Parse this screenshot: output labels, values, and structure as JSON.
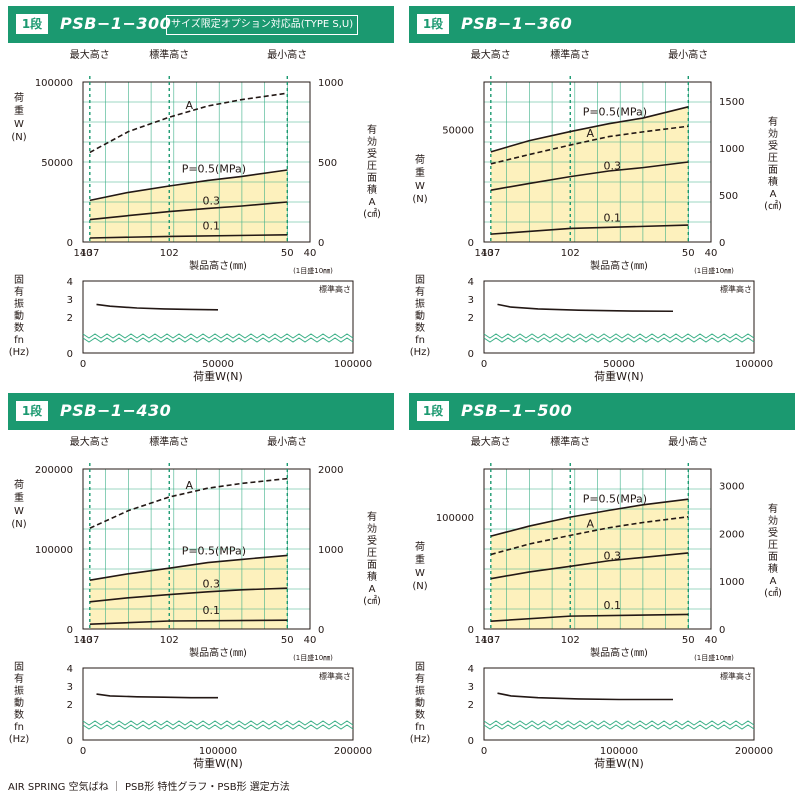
{
  "colors": {
    "header": "#1b9970",
    "grid": "#3db088",
    "fill": "#fdf1bd",
    "dashed_green": "#1b9970"
  },
  "labels": {
    "max_height": "最大高さ",
    "std_height": "標準高さ",
    "min_height": "最小高さ",
    "load_axis": [
      "荷",
      "重",
      "W",
      "(N)"
    ],
    "area_axis": [
      "有",
      "効",
      "受",
      "圧",
      "面",
      "積",
      "A",
      "(㎠)"
    ],
    "height_axis": "製品高さ(㎜)",
    "height_note": "(1目盛10㎜)",
    "freq_axis": [
      "固",
      "有",
      "振",
      "動",
      "数",
      "fn",
      "(Hz)"
    ],
    "freq_std": "標準高さ",
    "load_x_axis": "荷重W(N)",
    "curve_area": "A",
    "curve_p05": "P=0.5(MPa)",
    "curve_p03": "0.3",
    "curve_p01": "0.1"
  },
  "footer": "AIR SPRING 空気ばね ｜ PSB形 特性グラフ・PSB形 選定方法",
  "charts": [
    {
      "step": "1段",
      "model": "PSB−1−300",
      "tag": "サイズ限定オプション対応品(TYPE S,U)",
      "chart_data": {
        "type": "line",
        "title": "PSB−1−300",
        "x_ticks": [
          "140",
          "137",
          "102",
          "50",
          "40"
        ],
        "x_ticks_val": [
          140,
          137,
          102,
          50,
          40
        ],
        "xlim": [
          140,
          40
        ],
        "load_ticks": [
          "100000",
          "50000",
          "0"
        ],
        "load_ticks_val": [
          100000,
          50000,
          0
        ],
        "load_max": 100000,
        "area_ticks": [
          "1000",
          "500",
          "0"
        ],
        "area_ticks_val": [
          1000,
          500,
          0
        ],
        "area_max": 1000,
        "series": [
          {
            "name": "A",
            "kind": "area",
            "x": [
              137,
              120,
              102,
              85,
              70,
              50
            ],
            "values": [
              560,
              690,
              780,
              850,
              890,
              930
            ]
          },
          {
            "name": "P=0.5(MPa)",
            "kind": "load",
            "x": [
              137,
              120,
              102,
              85,
              70,
              50
            ],
            "values": [
              26000,
              31000,
              35000,
              38500,
              41000,
              45000
            ]
          },
          {
            "name": "0.3",
            "kind": "load",
            "x": [
              137,
              120,
              102,
              85,
              70,
              50
            ],
            "values": [
              14000,
              16500,
              19000,
              21000,
              22500,
              25000
            ]
          },
          {
            "name": "0.1",
            "kind": "load",
            "x": [
              137,
              102,
              50
            ],
            "values": [
              2500,
              3500,
              4500
            ]
          }
        ],
        "freq": {
          "ticks": [
            "4",
            "3",
            "2",
            "0"
          ],
          "x_ticks": [
            "0",
            "50000",
            "100000"
          ],
          "x_ticks_val": [
            0,
            50000,
            100000
          ],
          "xmax": 100000,
          "x": [
            5000,
            10000,
            20000,
            30000,
            40000,
            50000
          ],
          "values": [
            2.7,
            2.6,
            2.5,
            2.45,
            2.42,
            2.4
          ]
        }
      }
    },
    {
      "step": "1段",
      "model": "PSB−1−360",
      "tag": "",
      "chart_data": {
        "type": "line",
        "title": "PSB−1−360",
        "x_ticks": [
          "140",
          "137",
          "102",
          "50",
          "40"
        ],
        "x_ticks_val": [
          140,
          137,
          102,
          50,
          40
        ],
        "xlim": [
          140,
          40
        ],
        "load_ticks": [
          "50000",
          "0"
        ],
        "load_ticks_val": [
          50000,
          0
        ],
        "load_max": 71000,
        "area_ticks": [
          "1500",
          "1000",
          "500",
          "0"
        ],
        "area_ticks_val": [
          1500,
          1000,
          500,
          0
        ],
        "area_max": 1700,
        "series": [
          {
            "name": "P=0.5(MPa)",
            "kind": "load",
            "x": [
              137,
              120,
              102,
              85,
              70,
              50
            ],
            "values": [
              40000,
              45000,
              49000,
              52500,
              55000,
              60000
            ]
          },
          {
            "name": "A",
            "kind": "area",
            "x": [
              137,
              120,
              102,
              85,
              70,
              50
            ],
            "values": [
              830,
              930,
              1030,
              1120,
              1170,
              1230
            ]
          },
          {
            "name": "0.3",
            "kind": "load",
            "x": [
              137,
              120,
              102,
              85,
              70,
              50
            ],
            "values": [
              23000,
              26000,
              29000,
              31500,
              33000,
              35500
            ]
          },
          {
            "name": "0.1",
            "kind": "load",
            "x": [
              137,
              102,
              50
            ],
            "values": [
              3500,
              6000,
              7500
            ]
          }
        ],
        "freq": {
          "ticks": [
            "4",
            "3",
            "2",
            "0"
          ],
          "x_ticks": [
            "0",
            "50000",
            "100000"
          ],
          "x_ticks_val": [
            0,
            50000,
            100000
          ],
          "xmax": 100000,
          "x": [
            5000,
            10000,
            20000,
            35000,
            55000,
            70000
          ],
          "values": [
            2.7,
            2.55,
            2.45,
            2.38,
            2.33,
            2.32
          ]
        }
      }
    },
    {
      "step": "1段",
      "model": "PSB−1−430",
      "tag": "",
      "chart_data": {
        "type": "line",
        "title": "PSB−1−430",
        "x_ticks": [
          "140",
          "137",
          "102",
          "50",
          "40"
        ],
        "x_ticks_val": [
          140,
          137,
          102,
          50,
          40
        ],
        "xlim": [
          140,
          40
        ],
        "load_ticks": [
          "200000",
          "100000",
          "0"
        ],
        "load_ticks_val": [
          200000,
          100000,
          0
        ],
        "load_max": 200000,
        "area_ticks": [
          "2000",
          "1000",
          "0"
        ],
        "area_ticks_val": [
          2000,
          1000,
          0
        ],
        "area_max": 2000,
        "series": [
          {
            "name": "A",
            "kind": "area",
            "x": [
              137,
              120,
              102,
              85,
              70,
              50
            ],
            "values": [
              1260,
              1480,
              1650,
              1760,
              1820,
              1880
            ]
          },
          {
            "name": "P=0.5(MPa)",
            "kind": "load",
            "x": [
              137,
              120,
              102,
              85,
              70,
              50
            ],
            "values": [
              61000,
              69000,
              76000,
              83000,
              87000,
              92000
            ]
          },
          {
            "name": "0.3",
            "kind": "load",
            "x": [
              137,
              120,
              102,
              85,
              70,
              50
            ],
            "values": [
              34000,
              39000,
              43000,
              46500,
              49000,
              51000
            ]
          },
          {
            "name": "0.1",
            "kind": "load",
            "x": [
              137,
              102,
              50
            ],
            "values": [
              6000,
              10000,
              11000
            ]
          }
        ],
        "freq": {
          "ticks": [
            "4",
            "3",
            "2",
            "0"
          ],
          "x_ticks": [
            "0",
            "100000",
            "200000"
          ],
          "x_ticks_val": [
            0,
            100000,
            200000
          ],
          "xmax": 200000,
          "x": [
            10000,
            20000,
            40000,
            60000,
            80000,
            100000
          ],
          "values": [
            2.55,
            2.45,
            2.4,
            2.38,
            2.35,
            2.35
          ]
        }
      }
    },
    {
      "step": "1段",
      "model": "PSB−1−500",
      "tag": "",
      "chart_data": {
        "type": "line",
        "title": "PSB−1−500",
        "x_ticks": [
          "140",
          "137",
          "102",
          "50",
          "40"
        ],
        "x_ticks_val": [
          140,
          137,
          102,
          50,
          40
        ],
        "xlim": [
          140,
          40
        ],
        "load_ticks": [
          "100000",
          "0"
        ],
        "load_ticks_val": [
          100000,
          0
        ],
        "load_max": 143000,
        "area_ticks": [
          "3000",
          "2000",
          "1000",
          "0"
        ],
        "area_ticks_val": [
          3000,
          2000,
          1000,
          0
        ],
        "area_max": 3350,
        "series": [
          {
            "name": "P=0.5(MPa)",
            "kind": "load",
            "x": [
              137,
              120,
              102,
              85,
              70,
              50
            ],
            "values": [
              83000,
              92000,
              100000,
              106000,
              111000,
              116000
            ]
          },
          {
            "name": "A",
            "kind": "area",
            "x": [
              137,
              120,
              102,
              85,
              70,
              50
            ],
            "values": [
              1560,
              1780,
              1960,
              2120,
              2230,
              2350
            ]
          },
          {
            "name": "0.3",
            "kind": "load",
            "x": [
              137,
              120,
              102,
              85,
              70,
              50
            ],
            "values": [
              45000,
              51000,
              56000,
              61000,
              64000,
              68000
            ]
          },
          {
            "name": "0.1",
            "kind": "load",
            "x": [
              137,
              102,
              50
            ],
            "values": [
              7000,
              11500,
              13000
            ]
          }
        ],
        "freq": {
          "ticks": [
            "4",
            "3",
            "2",
            "0"
          ],
          "x_ticks": [
            "0",
            "100000",
            "200000"
          ],
          "x_ticks_val": [
            0,
            100000,
            200000
          ],
          "xmax": 200000,
          "x": [
            10000,
            20000,
            40000,
            70000,
            100000,
            140000
          ],
          "values": [
            2.6,
            2.45,
            2.35,
            2.28,
            2.25,
            2.25
          ]
        }
      }
    }
  ]
}
